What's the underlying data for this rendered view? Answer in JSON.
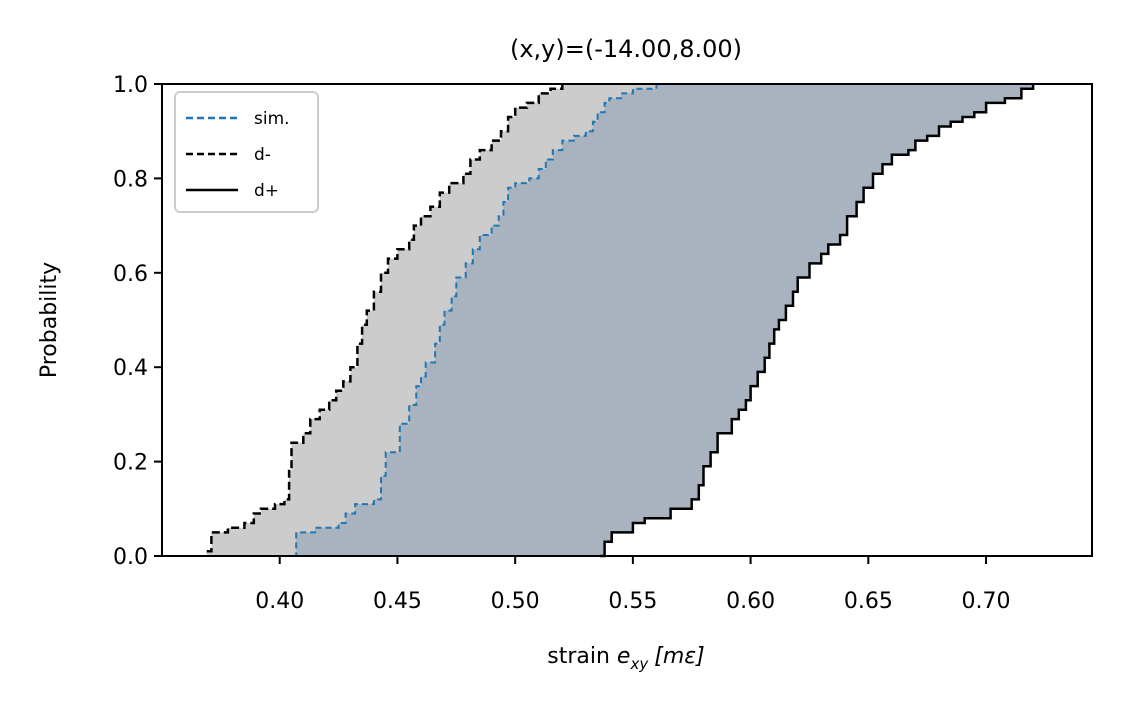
{
  "chart_data": {
    "type": "area",
    "title": "(x,y)=(-14.00,8.00)",
    "xlabel_prefix": "strain ",
    "xlabel_var": "e",
    "xlabel_sub": "xy",
    "xlabel_unit": "[mε]",
    "ylabel": "Probability",
    "xlim": [
      0.35,
      0.745
    ],
    "ylim": [
      0,
      1.0
    ],
    "x_ticks": [
      0.4,
      0.45,
      0.5,
      0.55,
      0.6,
      0.65,
      0.7
    ],
    "x_tick_labels": [
      "0.40",
      "0.45",
      "0.50",
      "0.55",
      "0.60",
      "0.65",
      "0.70"
    ],
    "y_ticks": [
      0.0,
      0.2,
      0.4,
      0.6,
      0.8,
      1.0
    ],
    "y_tick_labels": [
      "0.0",
      "0.2",
      "0.4",
      "0.6",
      "0.8",
      "1.0"
    ],
    "legend": {
      "placement": "top-left",
      "entries": [
        {
          "label": "sim.",
          "style": "dashed",
          "color": "#1f77b4"
        },
        {
          "label": "d-",
          "style": "dashed",
          "color": "#000000"
        },
        {
          "label": "d+",
          "style": "solid",
          "color": "#000000"
        }
      ]
    },
    "colors": {
      "sim": "#1f77b4",
      "bound": "#000000",
      "outer_band": "#cccccc",
      "inner_band": "#a8b3bf"
    },
    "series": [
      {
        "name": "d-",
        "points": [
          [
            0.369,
            0.01
          ],
          [
            0.371,
            0.05
          ],
          [
            0.378,
            0.06
          ],
          [
            0.385,
            0.07
          ],
          [
            0.389,
            0.09
          ],
          [
            0.392,
            0.1
          ],
          [
            0.398,
            0.11
          ],
          [
            0.402,
            0.12
          ],
          [
            0.404,
            0.18
          ],
          [
            0.405,
            0.24
          ],
          [
            0.41,
            0.26
          ],
          [
            0.413,
            0.29
          ],
          [
            0.417,
            0.31
          ],
          [
            0.421,
            0.33
          ],
          [
            0.424,
            0.35
          ],
          [
            0.427,
            0.37
          ],
          [
            0.43,
            0.4
          ],
          [
            0.433,
            0.45
          ],
          [
            0.435,
            0.49
          ],
          [
            0.437,
            0.52
          ],
          [
            0.44,
            0.56
          ],
          [
            0.443,
            0.6
          ],
          [
            0.446,
            0.63
          ],
          [
            0.45,
            0.65
          ],
          [
            0.455,
            0.67
          ],
          [
            0.457,
            0.7
          ],
          [
            0.46,
            0.72
          ],
          [
            0.464,
            0.74
          ],
          [
            0.468,
            0.77
          ],
          [
            0.472,
            0.79
          ],
          [
            0.478,
            0.81
          ],
          [
            0.481,
            0.84
          ],
          [
            0.485,
            0.86
          ],
          [
            0.49,
            0.88
          ],
          [
            0.494,
            0.9
          ],
          [
            0.497,
            0.93
          ],
          [
            0.5,
            0.95
          ],
          [
            0.505,
            0.96
          ],
          [
            0.51,
            0.98
          ],
          [
            0.515,
            0.99
          ],
          [
            0.52,
            1.0
          ]
        ]
      },
      {
        "name": "sim.",
        "points": [
          [
            0.406,
            0.0
          ],
          [
            0.407,
            0.05
          ],
          [
            0.415,
            0.06
          ],
          [
            0.425,
            0.07
          ],
          [
            0.428,
            0.09
          ],
          [
            0.432,
            0.11
          ],
          [
            0.44,
            0.12
          ],
          [
            0.443,
            0.17
          ],
          [
            0.445,
            0.22
          ],
          [
            0.451,
            0.28
          ],
          [
            0.455,
            0.32
          ],
          [
            0.458,
            0.36
          ],
          [
            0.46,
            0.38
          ],
          [
            0.462,
            0.41
          ],
          [
            0.466,
            0.45
          ],
          [
            0.468,
            0.49
          ],
          [
            0.47,
            0.52
          ],
          [
            0.473,
            0.55
          ],
          [
            0.475,
            0.59
          ],
          [
            0.479,
            0.62
          ],
          [
            0.482,
            0.65
          ],
          [
            0.485,
            0.68
          ],
          [
            0.49,
            0.7
          ],
          [
            0.493,
            0.72
          ],
          [
            0.495,
            0.75
          ],
          [
            0.497,
            0.78
          ],
          [
            0.5,
            0.79
          ],
          [
            0.506,
            0.8
          ],
          [
            0.51,
            0.82
          ],
          [
            0.513,
            0.84
          ],
          [
            0.516,
            0.86
          ],
          [
            0.52,
            0.88
          ],
          [
            0.525,
            0.89
          ],
          [
            0.53,
            0.9
          ],
          [
            0.533,
            0.92
          ],
          [
            0.535,
            0.94
          ],
          [
            0.538,
            0.96
          ],
          [
            0.54,
            0.97
          ],
          [
            0.545,
            0.98
          ],
          [
            0.55,
            0.99
          ],
          [
            0.56,
            1.0
          ]
        ]
      },
      {
        "name": "d+",
        "points": [
          [
            0.536,
            0.0
          ],
          [
            0.538,
            0.03
          ],
          [
            0.541,
            0.05
          ],
          [
            0.55,
            0.07
          ],
          [
            0.555,
            0.08
          ],
          [
            0.566,
            0.1
          ],
          [
            0.575,
            0.12
          ],
          [
            0.578,
            0.15
          ],
          [
            0.58,
            0.19
          ],
          [
            0.583,
            0.22
          ],
          [
            0.586,
            0.26
          ],
          [
            0.592,
            0.29
          ],
          [
            0.595,
            0.31
          ],
          [
            0.598,
            0.33
          ],
          [
            0.6,
            0.36
          ],
          [
            0.603,
            0.39
          ],
          [
            0.606,
            0.42
          ],
          [
            0.608,
            0.45
          ],
          [
            0.61,
            0.48
          ],
          [
            0.612,
            0.5
          ],
          [
            0.615,
            0.53
          ],
          [
            0.618,
            0.56
          ],
          [
            0.62,
            0.59
          ],
          [
            0.625,
            0.62
          ],
          [
            0.63,
            0.64
          ],
          [
            0.633,
            0.66
          ],
          [
            0.638,
            0.68
          ],
          [
            0.641,
            0.72
          ],
          [
            0.645,
            0.75
          ],
          [
            0.648,
            0.78
          ],
          [
            0.652,
            0.81
          ],
          [
            0.656,
            0.83
          ],
          [
            0.66,
            0.85
          ],
          [
            0.667,
            0.86
          ],
          [
            0.67,
            0.88
          ],
          [
            0.675,
            0.89
          ],
          [
            0.68,
            0.91
          ],
          [
            0.685,
            0.92
          ],
          [
            0.69,
            0.93
          ],
          [
            0.695,
            0.94
          ],
          [
            0.7,
            0.96
          ],
          [
            0.708,
            0.97
          ],
          [
            0.715,
            0.99
          ],
          [
            0.72,
            1.0
          ]
        ]
      }
    ]
  }
}
